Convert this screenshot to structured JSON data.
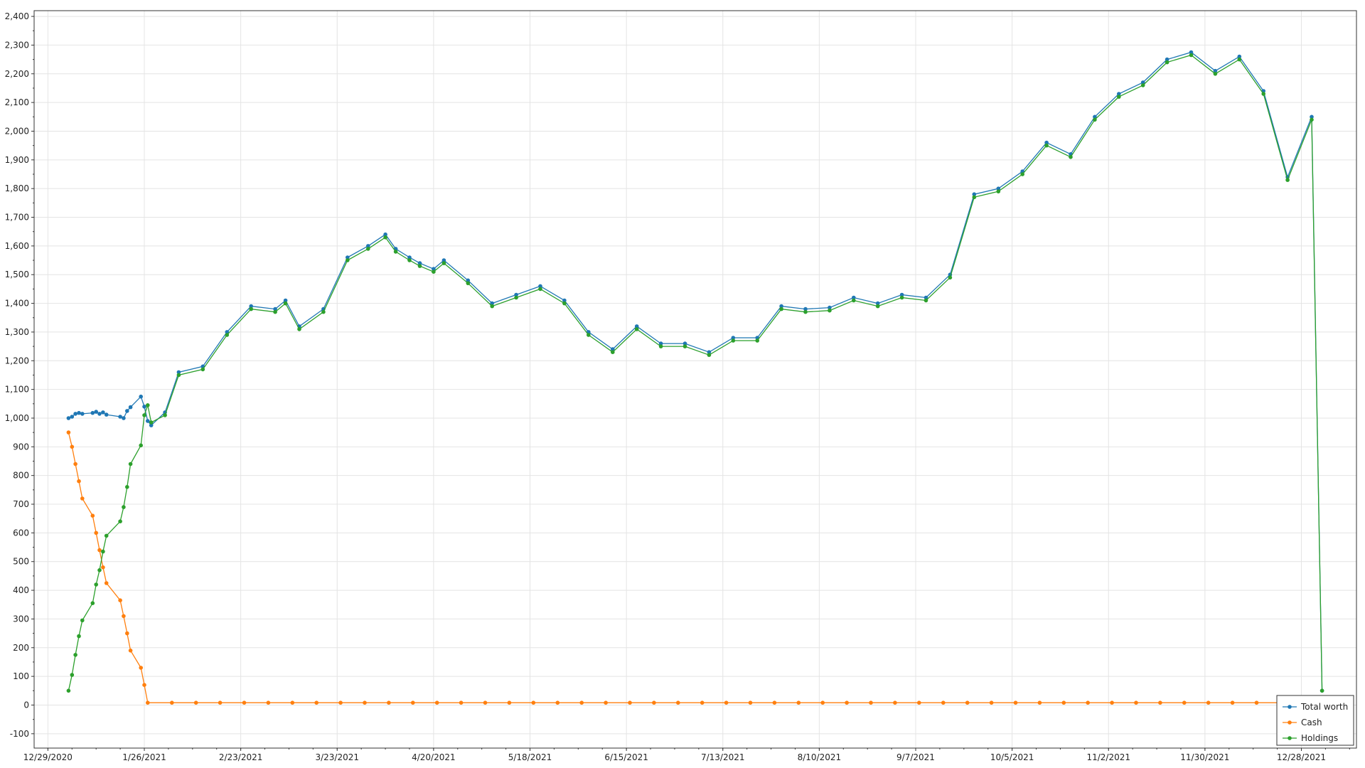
{
  "chart_data": {
    "type": "line",
    "title": "",
    "xlabel": "",
    "ylabel": "",
    "ylim": [
      -150,
      2420
    ],
    "xlim": [
      "2020-12-25",
      "2022-01-13"
    ],
    "x_ticks": [
      "12/29/2020",
      "1/26/2021",
      "2/23/2021",
      "3/23/2021",
      "4/20/2021",
      "5/18/2021",
      "6/15/2021",
      "7/13/2021",
      "8/10/2021",
      "9/7/2021",
      "10/5/2021",
      "11/2/2021",
      "11/30/2021",
      "12/28/2021"
    ],
    "y_ticks": [
      -100,
      0,
      100,
      200,
      300,
      400,
      500,
      600,
      700,
      800,
      900,
      1000,
      1100,
      1200,
      1300,
      1400,
      1500,
      1600,
      1700,
      1800,
      1900,
      2000,
      2100,
      2200,
      2300,
      2400
    ],
    "y_tick_labels": [
      "-100",
      "0",
      "100",
      "200",
      "300",
      "400",
      "500",
      "600",
      "700",
      "800",
      "900",
      "1,000",
      "1,100",
      "1,200",
      "1,300",
      "1,400",
      "1,500",
      "1,600",
      "1,700",
      "1,800",
      "1,900",
      "2,000",
      "2,100",
      "2,200",
      "2,300",
      "2,400"
    ],
    "grid": true,
    "legend_position": "bottom-right",
    "series": [
      {
        "name": "Total worth",
        "color": "#1f77b4",
        "x": [
          "2021-01-04",
          "2021-01-05",
          "2021-01-06",
          "2021-01-07",
          "2021-01-08",
          "2021-01-11",
          "2021-01-12",
          "2021-01-13",
          "2021-01-14",
          "2021-01-15",
          "2021-01-19",
          "2021-01-20",
          "2021-01-21",
          "2021-01-22",
          "2021-01-25",
          "2021-01-26",
          "2021-01-27",
          "2021-01-28",
          "2021-02-01",
          "2021-02-05",
          "2021-02-12",
          "2021-02-19",
          "2021-02-26",
          "2021-03-05",
          "2021-03-08",
          "2021-03-12",
          "2021-03-19",
          "2021-03-26",
          "2021-04-01",
          "2021-04-06",
          "2021-04-09",
          "2021-04-13",
          "2021-04-16",
          "2021-04-20",
          "2021-04-23",
          "2021-04-30",
          "2021-05-07",
          "2021-05-14",
          "2021-05-21",
          "2021-05-28",
          "2021-06-04",
          "2021-06-11",
          "2021-06-18",
          "2021-06-25",
          "2021-07-02",
          "2021-07-09",
          "2021-07-16",
          "2021-07-23",
          "2021-07-30",
          "2021-08-06",
          "2021-08-13",
          "2021-08-20",
          "2021-08-27",
          "2021-09-03",
          "2021-09-10",
          "2021-09-17",
          "2021-09-24",
          "2021-10-01",
          "2021-10-08",
          "2021-10-15",
          "2021-10-22",
          "2021-10-29",
          "2021-11-05",
          "2021-11-12",
          "2021-11-19",
          "2021-11-26",
          "2021-12-03",
          "2021-12-10",
          "2021-12-17",
          "2021-12-24",
          "2021-12-31",
          "2022-01-03"
        ],
        "values": [
          1000,
          1005,
          1015,
          1018,
          1015,
          1018,
          1022,
          1015,
          1020,
          1012,
          1005,
          1000,
          1025,
          1038,
          1075,
          1040,
          990,
          975,
          1020,
          1160,
          1180,
          1300,
          1390,
          1380,
          1410,
          1320,
          1380,
          1560,
          1600,
          1640,
          1590,
          1560,
          1540,
          1520,
          1550,
          1480,
          1400,
          1430,
          1460,
          1410,
          1300,
          1240,
          1320,
          1260,
          1260,
          1230,
          1280,
          1280,
          1390,
          1380,
          1385,
          1420,
          1400,
          1430,
          1420,
          1500,
          1780,
          1800,
          1860,
          1960,
          1920,
          2050,
          2130,
          2170,
          2250,
          2275,
          2210,
          2260,
          2140,
          1840,
          2050,
          50
        ]
      },
      {
        "name": "Cash",
        "color": "#ff7f0e",
        "x": [
          "2021-01-04",
          "2021-01-05",
          "2021-01-06",
          "2021-01-07",
          "2021-01-08",
          "2021-01-11",
          "2021-01-12",
          "2021-01-13",
          "2021-01-14",
          "2021-01-15",
          "2021-01-19",
          "2021-01-20",
          "2021-01-21",
          "2021-01-22",
          "2021-01-25",
          "2021-01-26",
          "2021-01-27",
          "2021-02-03",
          "2021-02-10",
          "2021-02-17",
          "2021-02-24",
          "2021-03-03",
          "2021-03-10",
          "2021-03-17",
          "2021-03-24",
          "2021-03-31",
          "2021-04-07",
          "2021-04-14",
          "2021-04-21",
          "2021-04-28",
          "2021-05-05",
          "2021-05-12",
          "2021-05-19",
          "2021-05-26",
          "2021-06-02",
          "2021-06-09",
          "2021-06-16",
          "2021-06-23",
          "2021-06-30",
          "2021-07-07",
          "2021-07-14",
          "2021-07-21",
          "2021-07-28",
          "2021-08-04",
          "2021-08-11",
          "2021-08-18",
          "2021-08-25",
          "2021-09-01",
          "2021-09-08",
          "2021-09-15",
          "2021-09-22",
          "2021-09-29",
          "2021-10-06",
          "2021-10-13",
          "2021-10-20",
          "2021-10-27",
          "2021-11-03",
          "2021-11-10",
          "2021-11-17",
          "2021-11-24",
          "2021-12-01",
          "2021-12-08",
          "2021-12-15",
          "2021-12-22",
          "2021-12-29",
          "2022-01-03"
        ],
        "values": [
          950,
          900,
          840,
          780,
          720,
          660,
          600,
          540,
          480,
          425,
          365,
          310,
          250,
          190,
          130,
          70,
          8,
          8,
          8,
          8,
          8,
          8,
          8,
          8,
          8,
          8,
          8,
          8,
          8,
          8,
          8,
          8,
          8,
          8,
          8,
          8,
          8,
          8,
          8,
          8,
          8,
          8,
          8,
          8,
          8,
          8,
          8,
          8,
          8,
          8,
          8,
          8,
          8,
          8,
          8,
          8,
          8,
          8,
          8,
          8,
          8,
          8,
          8,
          8,
          8,
          8
        ]
      },
      {
        "name": "Holdings",
        "color": "#2ca02c",
        "x": [
          "2021-01-04",
          "2021-01-05",
          "2021-01-06",
          "2021-01-07",
          "2021-01-08",
          "2021-01-11",
          "2021-01-12",
          "2021-01-13",
          "2021-01-14",
          "2021-01-15",
          "2021-01-19",
          "2021-01-20",
          "2021-01-21",
          "2021-01-22",
          "2021-01-25",
          "2021-01-26",
          "2021-01-27",
          "2021-01-28",
          "2021-02-01",
          "2021-02-05",
          "2021-02-12",
          "2021-02-19",
          "2021-02-26",
          "2021-03-05",
          "2021-03-08",
          "2021-03-12",
          "2021-03-19",
          "2021-03-26",
          "2021-04-01",
          "2021-04-06",
          "2021-04-09",
          "2021-04-13",
          "2021-04-16",
          "2021-04-20",
          "2021-04-23",
          "2021-04-30",
          "2021-05-07",
          "2021-05-14",
          "2021-05-21",
          "2021-05-28",
          "2021-06-04",
          "2021-06-11",
          "2021-06-18",
          "2021-06-25",
          "2021-07-02",
          "2021-07-09",
          "2021-07-16",
          "2021-07-23",
          "2021-07-30",
          "2021-08-06",
          "2021-08-13",
          "2021-08-20",
          "2021-08-27",
          "2021-09-03",
          "2021-09-10",
          "2021-09-17",
          "2021-09-24",
          "2021-10-01",
          "2021-10-08",
          "2021-10-15",
          "2021-10-22",
          "2021-10-29",
          "2021-11-05",
          "2021-11-12",
          "2021-11-19",
          "2021-11-26",
          "2021-12-03",
          "2021-12-10",
          "2021-12-17",
          "2021-12-24",
          "2021-12-31",
          "2022-01-03"
        ],
        "values": [
          50,
          105,
          175,
          240,
          295,
          355,
          420,
          470,
          535,
          590,
          640,
          690,
          760,
          840,
          905,
          1010,
          1045,
          985,
          1010,
          1150,
          1170,
          1290,
          1380,
          1370,
          1400,
          1310,
          1370,
          1550,
          1590,
          1630,
          1580,
          1550,
          1530,
          1510,
          1540,
          1470,
          1390,
          1420,
          1450,
          1400,
          1290,
          1230,
          1310,
          1250,
          1250,
          1220,
          1270,
          1270,
          1380,
          1370,
          1375,
          1410,
          1390,
          1420,
          1410,
          1490,
          1770,
          1790,
          1850,
          1950,
          1910,
          2040,
          2120,
          2160,
          2240,
          2265,
          2200,
          2250,
          2130,
          1830,
          2040,
          50
        ]
      }
    ]
  }
}
